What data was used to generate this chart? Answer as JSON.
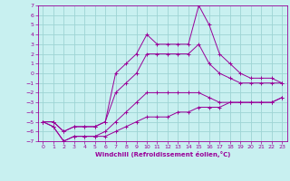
{
  "xlabel": "Windchill (Refroidissement éolien,°C)",
  "xlim": [
    -0.5,
    23.5
  ],
  "ylim": [
    -7,
    7
  ],
  "xticks": [
    0,
    1,
    2,
    3,
    4,
    5,
    6,
    7,
    8,
    9,
    10,
    11,
    12,
    13,
    14,
    15,
    16,
    17,
    18,
    19,
    20,
    21,
    22,
    23
  ],
  "yticks": [
    -7,
    -6,
    -5,
    -4,
    -3,
    -2,
    -1,
    0,
    1,
    2,
    3,
    4,
    5,
    6,
    7
  ],
  "background_color": "#c8f0f0",
  "line_color": "#990099",
  "grid_color": "#9ed4d4",
  "lines": [
    {
      "x": [
        0,
        1,
        2,
        3,
        4,
        5,
        6,
        7,
        8,
        9,
        10,
        11,
        12,
        13,
        14,
        15,
        16,
        17,
        18,
        19,
        20,
        21,
        22,
        23
      ],
      "y": [
        -5,
        -5.5,
        -7,
        -6.5,
        -6.5,
        -6.5,
        -6.5,
        -6,
        -5.5,
        -5,
        -4.5,
        -4.5,
        -4.5,
        -4,
        -4,
        -3.5,
        -3.5,
        -3.5,
        -3,
        -3,
        -3,
        -3,
        -3,
        -2.5
      ]
    },
    {
      "x": [
        0,
        1,
        2,
        3,
        4,
        5,
        6,
        7,
        8,
        9,
        10,
        11,
        12,
        13,
        14,
        15,
        16,
        17,
        18,
        19,
        20,
        21,
        22,
        23
      ],
      "y": [
        -5,
        -5.5,
        -7,
        -6.5,
        -6.5,
        -6.5,
        -6,
        -5,
        -4,
        -3,
        -2,
        -2,
        -2,
        -2,
        -2,
        -2,
        -2.5,
        -3,
        -3,
        -3,
        -3,
        -3,
        -3,
        -2.5
      ]
    },
    {
      "x": [
        0,
        1,
        2,
        3,
        4,
        5,
        6,
        7,
        8,
        9,
        10,
        11,
        12,
        13,
        14,
        15,
        16,
        17,
        18,
        19,
        20,
        21,
        22,
        23
      ],
      "y": [
        -5,
        -5,
        -6,
        -5.5,
        -5.5,
        -5.5,
        -5,
        -2,
        -1,
        0,
        2,
        2,
        2,
        2,
        2,
        3,
        1,
        0,
        -0.5,
        -1,
        -1,
        -1,
        -1,
        -1
      ]
    },
    {
      "x": [
        0,
        1,
        2,
        3,
        4,
        5,
        6,
        7,
        8,
        9,
        10,
        11,
        12,
        13,
        14,
        15,
        16,
        17,
        18,
        19,
        20,
        21,
        22,
        23
      ],
      "y": [
        -5,
        -5,
        -6,
        -5.5,
        -5.5,
        -5.5,
        -5,
        0,
        1,
        2,
        4,
        3,
        3,
        3,
        3,
        7,
        5,
        2,
        1,
        0,
        -0.5,
        -0.5,
        -0.5,
        -1
      ]
    }
  ]
}
